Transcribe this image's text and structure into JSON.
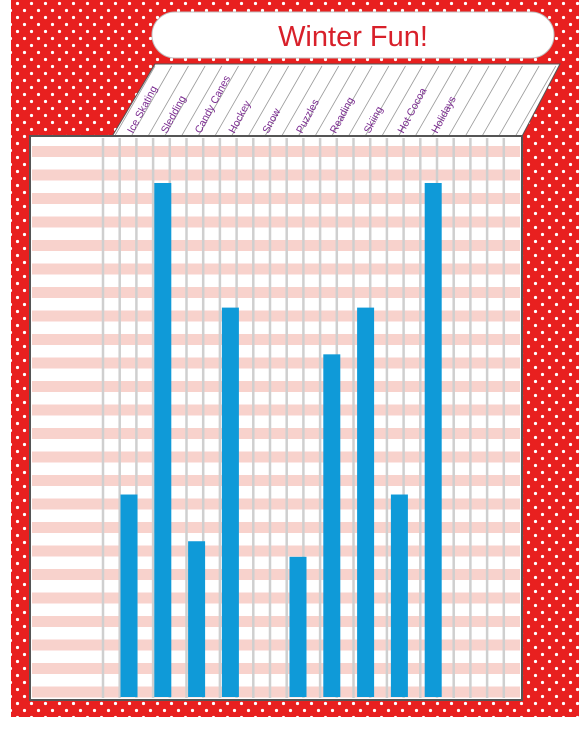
{
  "chart_data": {
    "type": "bar",
    "title": "Winter Fun!",
    "categories": [
      "Ice Skating",
      "Sledding",
      "Candy Canes",
      "Hockey",
      "Snow",
      "Puzzles",
      "Reading",
      "Skiing",
      "Hot Cocoa",
      "Holidays"
    ],
    "values": [
      6.5,
      16.5,
      5.0,
      12.5,
      0,
      4.5,
      11.0,
      12.5,
      6.5,
      16.5
    ],
    "ylim": [
      0,
      16.5
    ],
    "bar_color": "#0f9ad8"
  },
  "colors": {
    "border": "#e8201f",
    "dot": "#ffffff",
    "stripe": "#f8d2cc",
    "label": "#7a2a90",
    "title_text": "#d8202a"
  }
}
